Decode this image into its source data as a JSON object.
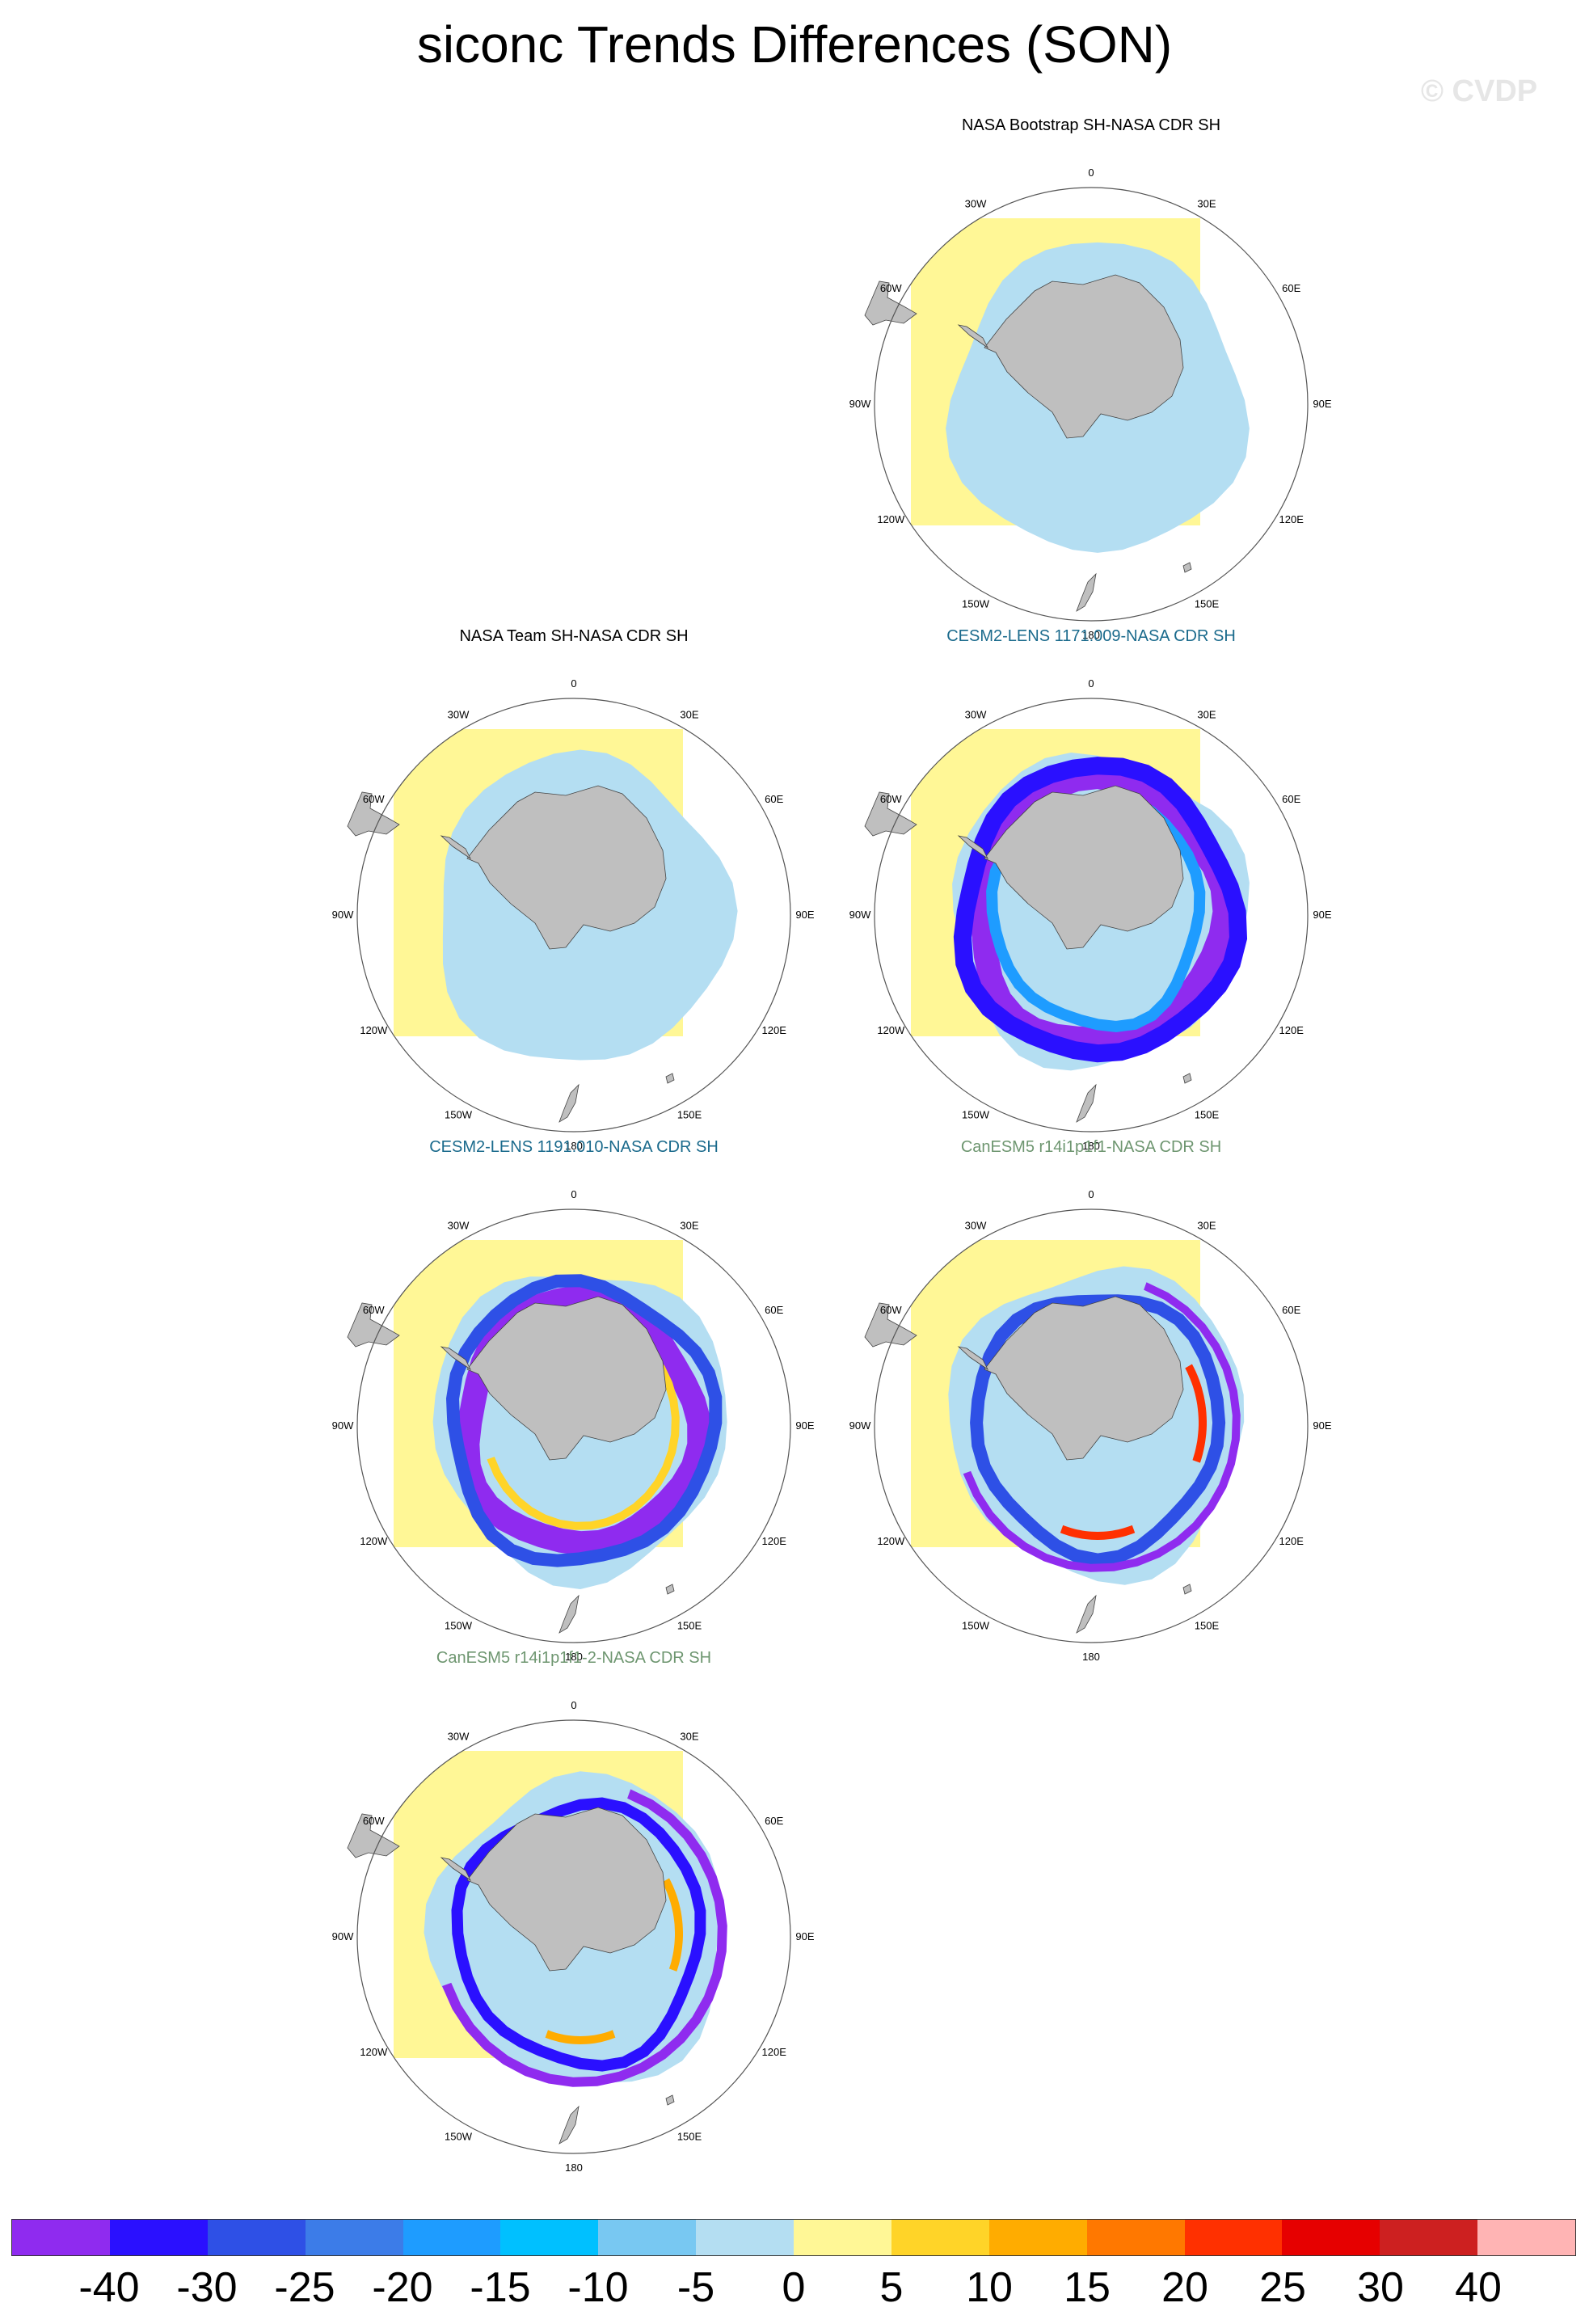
{
  "title": "siconc Trends Differences (SON)",
  "watermark": "© CVDP",
  "lon_labels": [
    "0",
    "30E",
    "60E",
    "90E",
    "120E",
    "150E",
    "180",
    "150W",
    "120W",
    "90W",
    "60W",
    "30W"
  ],
  "panels": [
    {
      "title": "NASA Bootstrap SH-NASA CDR SH",
      "title_color": "#000000",
      "pattern": "bootstrap"
    },
    {
      "title": "NASA Team SH-NASA CDR SH",
      "title_color": "#000000",
      "pattern": "team"
    },
    {
      "title": "CESM2-LENS 1171.009-NASA CDR SH",
      "title_color": "#1a6a8c",
      "pattern": "cesm_a"
    },
    {
      "title": "CESM2-LENS 1191.010-NASA CDR SH",
      "title_color": "#1a6a8c",
      "pattern": "cesm_b"
    },
    {
      "title": "CanESM5 r14i1p1f1-NASA CDR SH",
      "title_color": "#6e9670",
      "pattern": "canesm_a"
    },
    {
      "title": "CanESM5 r14i1p1f1-2-NASA CDR SH",
      "title_color": "#6e9670",
      "pattern": "canesm_b"
    }
  ],
  "colorbar": {
    "colors": [
      "#8f2bef",
      "#2a10ff",
      "#2e50e6",
      "#3c7ce8",
      "#1e9cff",
      "#00c0ff",
      "#78c8f2",
      "#b4def2",
      "#fff796",
      "#ffd428",
      "#ffac00",
      "#ff7800",
      "#ff3000",
      "#e60000",
      "#cd2020",
      "#ffb4b4"
    ],
    "labels": [
      "-40",
      "-30",
      "-25",
      "-20",
      "-15",
      "-10",
      "-5",
      "0",
      "5",
      "10",
      "15",
      "20",
      "25",
      "30",
      "40"
    ]
  }
}
